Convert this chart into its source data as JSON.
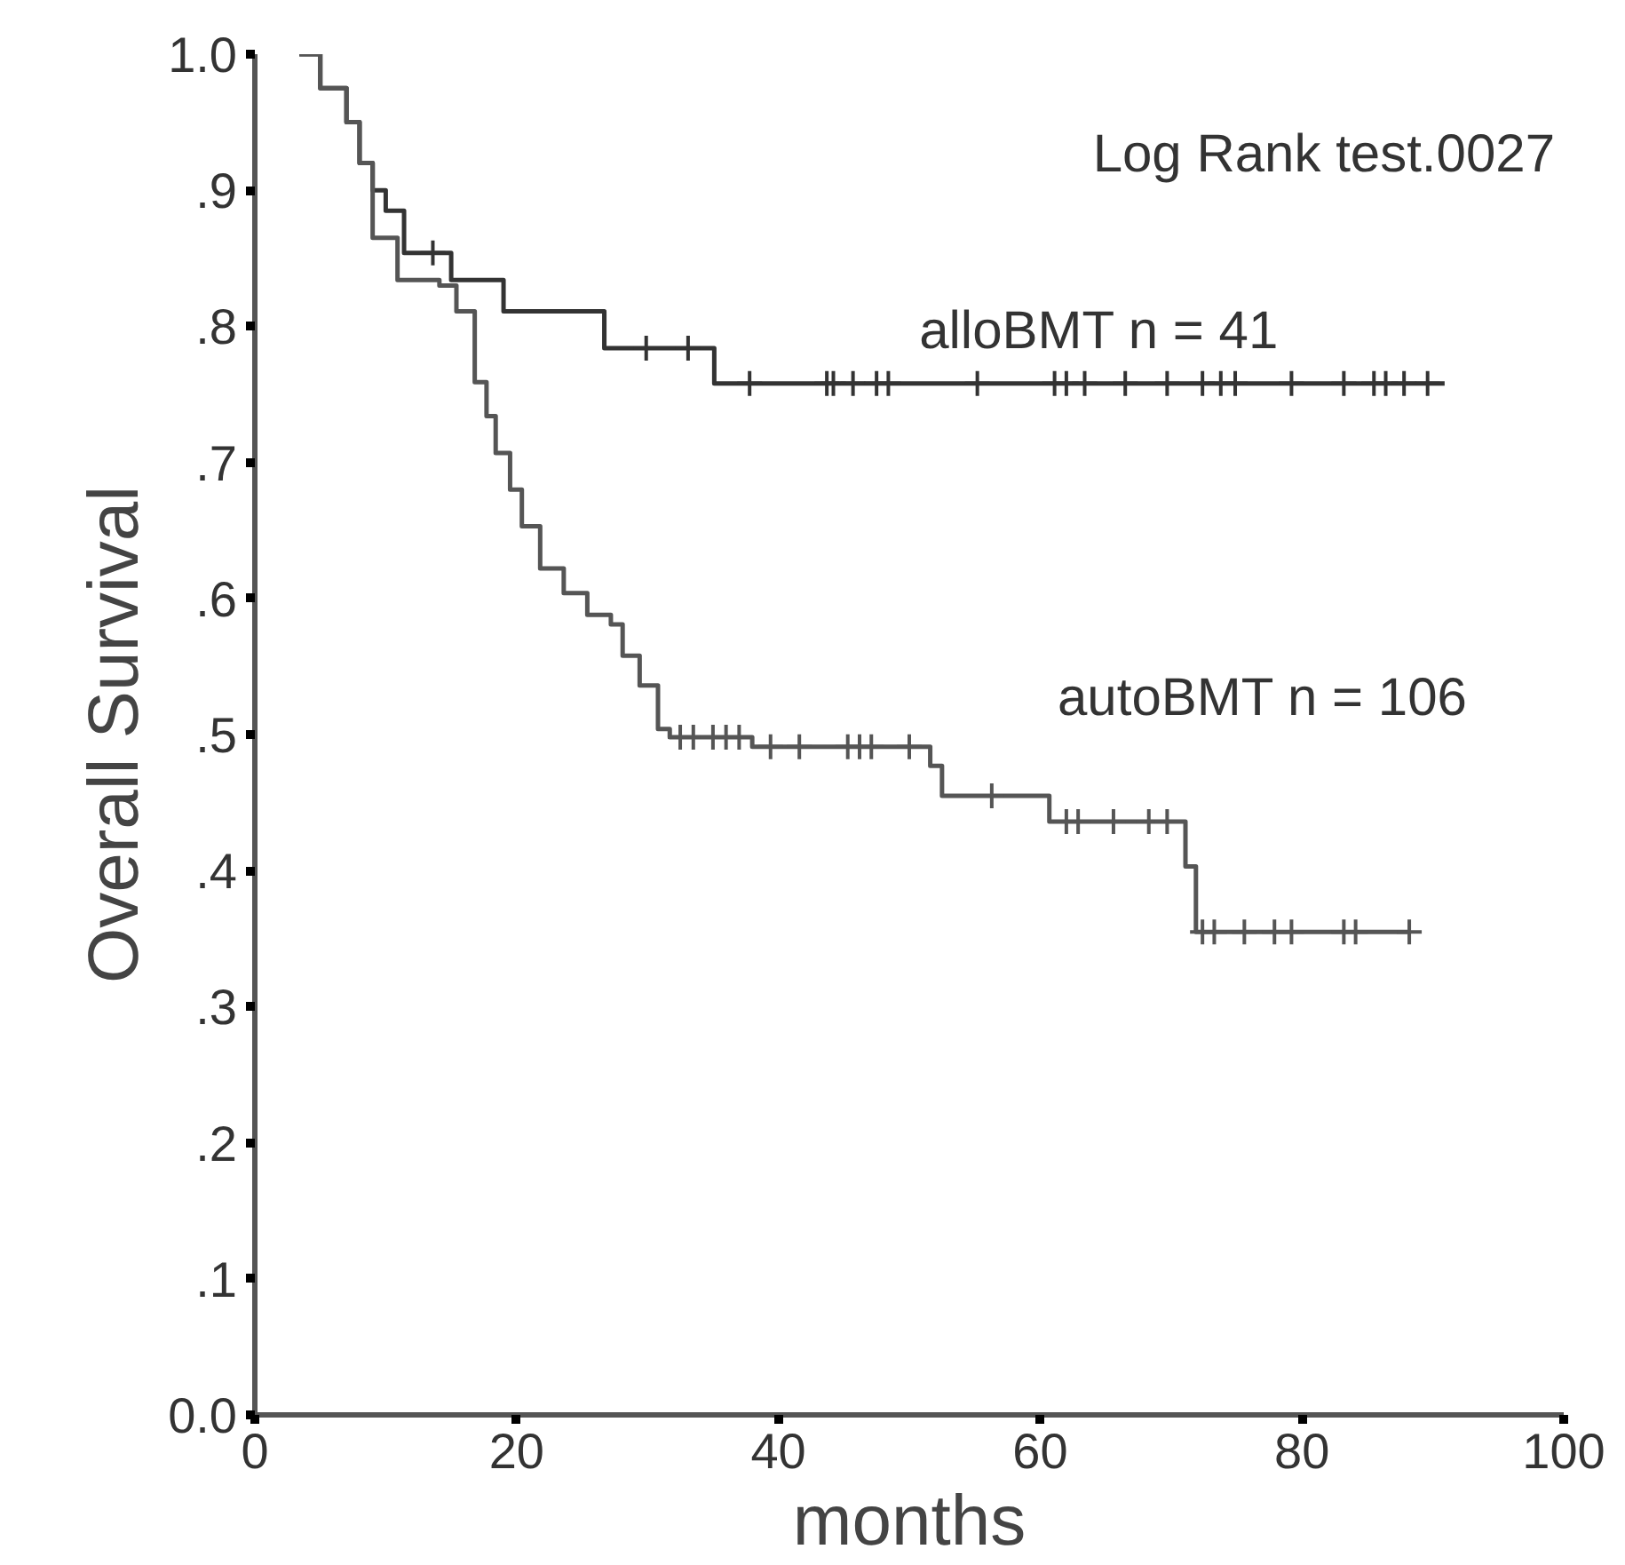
{
  "chart_data": {
    "type": "step",
    "xlabel": "months",
    "ylabel": "Overall Survival",
    "xlim": [
      0,
      100
    ],
    "ylim": [
      0,
      1
    ],
    "xticks": [
      0,
      20,
      40,
      60,
      80,
      100
    ],
    "yticks": [
      {
        "value": 0,
        "label": "0.0"
      },
      {
        "value": 0.1,
        "label": ".1"
      },
      {
        "value": 0.2,
        "label": ".2"
      },
      {
        "value": 0.3,
        "label": ".3"
      },
      {
        "value": 0.4,
        "label": ".4"
      },
      {
        "value": 0.5,
        "label": ".5"
      },
      {
        "value": 0.6,
        "label": ".6"
      },
      {
        "value": 0.7,
        "label": ".7"
      },
      {
        "value": 0.8,
        "label": ".8"
      },
      {
        "value": 0.9,
        "label": ".9"
      },
      {
        "value": 1.0,
        "label": "1.0"
      }
    ],
    "grid": false,
    "series": [
      {
        "name": "alloBMT n = 41",
        "color": "#333333",
        "x": [
          3.4,
          5,
          7,
          8,
          9,
          10,
          11.4,
          15,
          19,
          26.7,
          35.1,
          90.9
        ],
        "values": [
          1.0,
          0.975,
          0.95,
          0.92,
          0.9,
          0.885,
          0.854,
          0.834,
          0.811,
          0.784,
          0.758,
          0.758
        ]
      },
      {
        "name": "autoBMT n = 106",
        "color": "#555555",
        "x": [
          3.4,
          5,
          7,
          8,
          9,
          10.9,
          14.1,
          15.4,
          16.8,
          17.7,
          18.4,
          19.5,
          20.4,
          21.8,
          23.6,
          25.4,
          27.2,
          28.1,
          29.4,
          30.8,
          31.7,
          38,
          51.6,
          52.5,
          60.7,
          71.1,
          71.9,
          88.2
        ],
        "values": [
          1.0,
          0.975,
          0.95,
          0.92,
          0.865,
          0.834,
          0.83,
          0.811,
          0.759,
          0.734,
          0.707,
          0.68,
          0.653,
          0.622,
          0.604,
          0.588,
          0.581,
          0.558,
          0.536,
          0.504,
          0.498,
          0.491,
          0.477,
          0.455,
          0.436,
          0.403,
          0.355,
          0.355
        ]
      },
      {
        "type": "scatter",
        "marker": "cross",
        "color": "#333333",
        "x": [
          13.6,
          29.9,
          33.1,
          37.8,
          43.7,
          44.2,
          45.7,
          47.5,
          48.4,
          55.2,
          61.1,
          62.0,
          63.4,
          66.5,
          69.7,
          72.4,
          73.8,
          74.9,
          79.2,
          83.2,
          85.5,
          86.4,
          87.8,
          89.6
        ],
        "values": [
          0.854,
          0.784,
          0.784,
          0.758,
          0.758,
          0.758,
          0.758,
          0.758,
          0.758,
          0.758,
          0.758,
          0.758,
          0.758,
          0.758,
          0.758,
          0.758,
          0.758,
          0.758,
          0.758,
          0.758,
          0.758,
          0.758,
          0.758,
          0.758
        ]
      },
      {
        "type": "scatter",
        "marker": "cross",
        "color": "#555555",
        "x": [
          32.5,
          33.5,
          35,
          36,
          37,
          39.4,
          41.6,
          45.3,
          46.2,
          47.1,
          50.0,
          56.3,
          62.0,
          62.9,
          65.6,
          68.3,
          69.7,
          72.4,
          73.3,
          75.6,
          77.9,
          79.2,
          83.2,
          84.1,
          88.2
        ],
        "values": [
          0.498,
          0.498,
          0.498,
          0.498,
          0.498,
          0.491,
          0.491,
          0.491,
          0.491,
          0.491,
          0.491,
          0.455,
          0.436,
          0.436,
          0.436,
          0.436,
          0.436,
          0.355,
          0.355,
          0.355,
          0.355,
          0.355,
          0.355,
          0.355,
          0.355
        ]
      }
    ],
    "annotations": [
      "Log Rank test.0027"
    ]
  }
}
